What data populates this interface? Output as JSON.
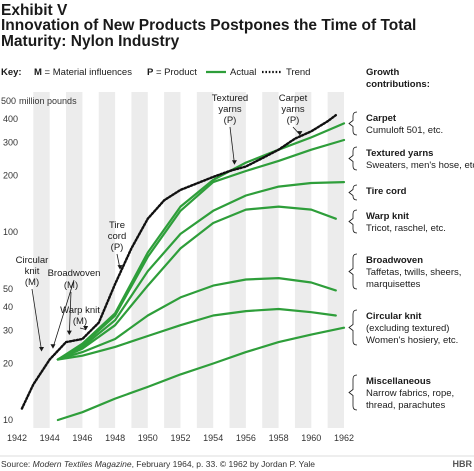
{
  "header": {
    "exhibit": "Exhibit V",
    "title_lines": [
      "Innovation of New Products Postpones the Time of Total",
      "Maturity: Nylon Industry"
    ]
  },
  "key": {
    "label": "Key:",
    "m_code": "M",
    "m_text": " = Material influences",
    "p_code": "P",
    "p_text": " = Product",
    "actual": "Actual",
    "trend": "Trend",
    "growth_title": [
      "Growth",
      "contributions:"
    ]
  },
  "colors": {
    "actual": "#2e9e3a",
    "trend": "#111111",
    "band": "#ececec",
    "text": "#1a1a1a"
  },
  "chart_data": {
    "type": "area",
    "scale": "log",
    "ylabel": "million pounds",
    "x_range": [
      1942,
      1962
    ],
    "y_range": [
      10,
      500
    ],
    "x_ticks": [
      1942,
      1944,
      1946,
      1948,
      1950,
      1952,
      1954,
      1956,
      1958,
      1960,
      1962
    ],
    "y_ticks": [
      {
        "value": 10,
        "label": "10"
      },
      {
        "value": 20,
        "label": "20"
      },
      {
        "value": 30,
        "label": "30"
      },
      {
        "value": 40,
        "label": "40"
      },
      {
        "value": 50,
        "label": "50"
      },
      {
        "value": 100,
        "label": "100"
      },
      {
        "value": 200,
        "label": "200"
      },
      {
        "value": 300,
        "label": "300"
      },
      {
        "value": 400,
        "label": "400"
      },
      {
        "value": 500,
        "label": "500"
      }
    ],
    "trend": {
      "name": "Trend",
      "points": [
        [
          1942.3,
          11.5
        ],
        [
          1943,
          15.5
        ],
        [
          1944,
          21
        ],
        [
          1945,
          26
        ],
        [
          1946,
          27
        ],
        [
          1947,
          33
        ],
        [
          1948,
          53
        ],
        [
          1949,
          82
        ],
        [
          1950,
          118
        ],
        [
          1951,
          148
        ],
        [
          1952,
          168
        ],
        [
          1953,
          182
        ],
        [
          1954,
          197
        ],
        [
          1955,
          212
        ],
        [
          1956,
          224
        ],
        [
          1957,
          248
        ],
        [
          1958,
          275
        ],
        [
          1959,
          315
        ],
        [
          1960,
          345
        ],
        [
          1961,
          390
        ],
        [
          1961.5,
          420
        ]
      ]
    },
    "series": [
      {
        "name": "Carpet",
        "points": [
          [
            1944.5,
            21
          ],
          [
            1946,
            25.5
          ],
          [
            1948,
            37
          ],
          [
            1950,
            78
          ],
          [
            1952,
            137
          ],
          [
            1954,
            190
          ],
          [
            1956,
            235
          ],
          [
            1958,
            275
          ],
          [
            1960,
            320
          ],
          [
            1962,
            380
          ]
        ]
      },
      {
        "name": "Textured yarns",
        "points": [
          [
            1944.5,
            21
          ],
          [
            1946,
            25
          ],
          [
            1948,
            36
          ],
          [
            1950,
            74
          ],
          [
            1952,
            130
          ],
          [
            1954,
            185
          ],
          [
            1956,
            212
          ],
          [
            1958,
            240
          ],
          [
            1960,
            275
          ],
          [
            1962,
            310
          ]
        ]
      },
      {
        "name": "Tire cord",
        "points": [
          [
            1944.5,
            21
          ],
          [
            1946,
            24.5
          ],
          [
            1948,
            34
          ],
          [
            1950,
            62
          ],
          [
            1952,
            98
          ],
          [
            1954,
            130
          ],
          [
            1956,
            157
          ],
          [
            1958,
            175
          ],
          [
            1960,
            183
          ],
          [
            1962,
            185
          ]
        ]
      },
      {
        "name": "Warp knit",
        "points": [
          [
            1944.5,
            21
          ],
          [
            1946,
            24
          ],
          [
            1948,
            32
          ],
          [
            1950,
            52
          ],
          [
            1952,
            82
          ],
          [
            1954,
            112
          ],
          [
            1956,
            132
          ],
          [
            1958,
            137
          ],
          [
            1960,
            132
          ],
          [
            1961.5,
            118
          ]
        ]
      },
      {
        "name": "Broadwoven",
        "points": [
          [
            1944.5,
            21
          ],
          [
            1946,
            23
          ],
          [
            1948,
            27
          ],
          [
            1950,
            36
          ],
          [
            1952,
            45
          ],
          [
            1954,
            52
          ],
          [
            1956,
            56
          ],
          [
            1958,
            57
          ],
          [
            1960,
            54
          ],
          [
            1961.5,
            49
          ]
        ]
      },
      {
        "name": "Circular knit",
        "points": [
          [
            1944.5,
            21
          ],
          [
            1946,
            22
          ],
          [
            1948,
            24.5
          ],
          [
            1950,
            28
          ],
          [
            1952,
            32
          ],
          [
            1954,
            36
          ],
          [
            1956,
            38
          ],
          [
            1958,
            39
          ],
          [
            1960,
            37.5
          ],
          [
            1961.5,
            36
          ]
        ]
      },
      {
        "name": "Miscellaneous",
        "points": [
          [
            1944.5,
            10
          ],
          [
            1946,
            11
          ],
          [
            1948,
            13
          ],
          [
            1950,
            15
          ],
          [
            1952,
            17.5
          ],
          [
            1954,
            20
          ],
          [
            1956,
            23
          ],
          [
            1958,
            26
          ],
          [
            1960,
            28.5
          ],
          [
            1962,
            31
          ]
        ]
      }
    ],
    "annotations": [
      {
        "label": [
          "Circular",
          "knit",
          "(M)"
        ],
        "x": 1943.5,
        "y": 21
      },
      {
        "label": [
          "Broadwoven"
        ],
        "x": 1944.2,
        "y": 22
      },
      {
        "label": [
          "(M)"
        ],
        "x": 1945.2,
        "y": 26
      },
      {
        "label": [
          "Warp knit",
          "(M)"
        ],
        "x": 1946.2,
        "y": 27.5
      },
      {
        "label": [
          "Tire",
          "cord",
          "(P)"
        ],
        "x": 1948.3,
        "y": 58
      },
      {
        "label": [
          "Textured",
          "yarns",
          "(P)"
        ],
        "x": 1955.3,
        "y": 210
      },
      {
        "label": [
          "Carpet",
          "yarns",
          "(P)"
        ],
        "x": 1959.3,
        "y": 300
      }
    ],
    "growth_contributions": [
      {
        "name": "Carpet",
        "desc": [
          "Cumuloft 501, etc."
        ]
      },
      {
        "name": "Textured yarns",
        "desc": [
          "Sweaters, men's hose, etc"
        ]
      },
      {
        "name": "Tire cord",
        "desc": []
      },
      {
        "name": "Warp knit",
        "desc": [
          "Tricot, raschel, etc."
        ]
      },
      {
        "name": "Broadwoven",
        "desc": [
          "Taffetas, twills, sheers,",
          "marquisettes"
        ]
      },
      {
        "name": "Circular knit",
        "desc": [
          "(excluding textured)",
          "Women's hosiery, etc."
        ]
      },
      {
        "name": "Miscellaneous",
        "desc": [
          "Narrow fabrics, rope,",
          "thread, parachutes"
        ]
      }
    ]
  },
  "source": {
    "prefix": "Source: ",
    "italic": "Modern Textiles Magazine",
    "suffix": ", February 1964, p. 33. © 1962 by Jordan P. Yale"
  },
  "brand": "HBR"
}
